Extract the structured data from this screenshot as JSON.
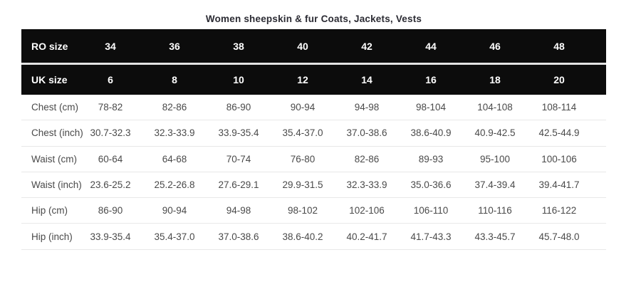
{
  "title": "Women sheepskin & fur Coats, Jackets, Vests",
  "colors": {
    "header_bg": "#0c0c0c",
    "header_text": "#ffffff",
    "body_text": "#4a4a4a",
    "divider": "#e8e8e8",
    "background": "#ffffff"
  },
  "table": {
    "header_rows": [
      {
        "label": "RO size",
        "values": [
          "34",
          "36",
          "38",
          "40",
          "42",
          "44",
          "46",
          "48"
        ]
      },
      {
        "label": "UK size",
        "values": [
          "6",
          "8",
          "10",
          "12",
          "14",
          "16",
          "18",
          "20"
        ]
      }
    ],
    "rows": [
      {
        "label": "Chest (cm)",
        "values": [
          "78-82",
          "82-86",
          "86-90",
          "90-94",
          "94-98",
          "98-104",
          "104-108",
          "108-114"
        ]
      },
      {
        "label": "Chest (inch)",
        "values": [
          "30.7-32.3",
          "32.3-33.9",
          "33.9-35.4",
          "35.4-37.0",
          "37.0-38.6",
          "38.6-40.9",
          "40.9-42.5",
          "42.5-44.9"
        ]
      },
      {
        "label": "Waist (cm)",
        "values": [
          "60-64",
          "64-68",
          "70-74",
          "76-80",
          "82-86",
          "89-93",
          "95-100",
          "100-106"
        ]
      },
      {
        "label": "Waist (inch)",
        "values": [
          "23.6-25.2",
          "25.2-26.8",
          "27.6-29.1",
          "29.9-31.5",
          "32.3-33.9",
          "35.0-36.6",
          "37.4-39.4",
          "39.4-41.7"
        ]
      },
      {
        "label": "Hip (cm)",
        "values": [
          "86-90",
          "90-94",
          "94-98",
          "98-102",
          "102-106",
          "106-110",
          "110-116",
          "116-122"
        ]
      },
      {
        "label": "Hip (inch)",
        "values": [
          "33.9-35.4",
          "35.4-37.0",
          "37.0-38.6",
          "38.6-40.2",
          "40.2-41.7",
          "41.7-43.3",
          "43.3-45.7",
          "45.7-48.0"
        ]
      }
    ]
  }
}
